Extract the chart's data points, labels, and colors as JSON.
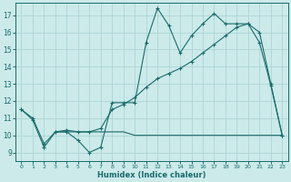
{
  "bg_color": "#cceaea",
  "grid_color": "#aed4d4",
  "line_color": "#1a6b6b",
  "xlabel": "Humidex (Indice chaleur)",
  "xlim": [
    -0.5,
    23.5
  ],
  "ylim": [
    8.5,
    17.7
  ],
  "x_ticks": [
    0,
    1,
    2,
    3,
    4,
    5,
    6,
    7,
    8,
    9,
    10,
    11,
    12,
    13,
    14,
    15,
    16,
    17,
    18,
    19,
    20,
    21,
    22,
    23
  ],
  "y_ticks": [
    9,
    10,
    11,
    12,
    13,
    14,
    15,
    16,
    17
  ],
  "jagged_x": [
    0,
    1,
    2,
    3,
    4,
    5,
    6,
    7,
    8,
    9,
    10,
    11,
    12,
    13,
    14,
    15,
    16,
    17,
    18,
    19,
    20,
    21,
    22,
    23
  ],
  "jagged_y": [
    11.5,
    10.9,
    9.3,
    10.2,
    10.2,
    9.7,
    9.0,
    9.3,
    11.9,
    11.9,
    11.9,
    15.4,
    17.4,
    16.4,
    14.8,
    15.8,
    16.5,
    17.1,
    16.5,
    16.5,
    16.5,
    15.4,
    12.9,
    10.0
  ],
  "trend_x": [
    0,
    1,
    2,
    3,
    4,
    5,
    6,
    7,
    8,
    9,
    10,
    11,
    12,
    13,
    14,
    15,
    16,
    17,
    18,
    19,
    20,
    21,
    22,
    23
  ],
  "trend_y": [
    11.5,
    11.0,
    9.5,
    10.2,
    10.3,
    10.2,
    10.2,
    10.4,
    11.5,
    11.8,
    12.2,
    12.8,
    13.3,
    13.6,
    13.9,
    14.3,
    14.8,
    15.3,
    15.8,
    16.3,
    16.5,
    16.0,
    13.0,
    10.0
  ],
  "flat_x": [
    3,
    4,
    5,
    6,
    7,
    8,
    9,
    10,
    11,
    12,
    13,
    14,
    15,
    16,
    17,
    18,
    19,
    20,
    21,
    22,
    23
  ],
  "flat_y": [
    10.2,
    10.2,
    10.2,
    10.2,
    10.2,
    10.2,
    10.2,
    10.0,
    10.0,
    10.0,
    10.0,
    10.0,
    10.0,
    10.0,
    10.0,
    10.0,
    10.0,
    10.0,
    10.0,
    10.0,
    10.0
  ]
}
